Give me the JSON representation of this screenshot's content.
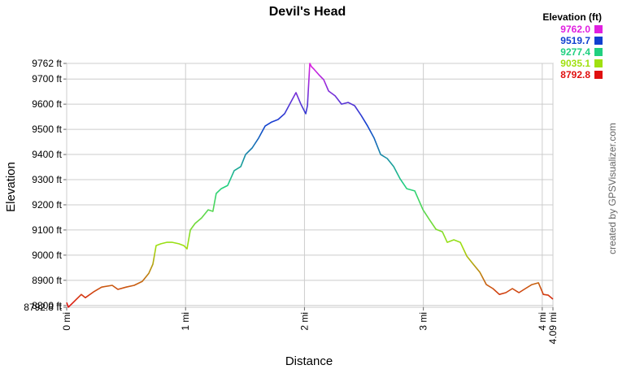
{
  "chart_data": {
    "type": "line",
    "title": "Devil's Head",
    "x_label": "Distance",
    "y_label": "Elevation",
    "credit": "created by GPSVisualizer.com",
    "legend_title": "Elevation (ft)",
    "legend": [
      {
        "value": 9762.0,
        "label": "9762.0",
        "color": "#e020e0"
      },
      {
        "value": 9519.7,
        "label": "9519.7",
        "color": "#1040d0"
      },
      {
        "value": 9277.4,
        "label": "9277.4",
        "color": "#20d080"
      },
      {
        "value": 9035.1,
        "label": "9035.1",
        "color": "#a0e010"
      },
      {
        "value": 8792.8,
        "label": "8792.8",
        "color": "#e01010"
      }
    ],
    "x": [
      0,
      0.014,
      0.055,
      0.123,
      0.157,
      0.226,
      0.294,
      0.383,
      0.431,
      0.5,
      0.568,
      0.636,
      0.691,
      0.725,
      0.752,
      0.793,
      0.841,
      0.889,
      0.944,
      0.985,
      1.012,
      1.04,
      1.08,
      1.135,
      1.19,
      1.23,
      1.258,
      1.3,
      1.354,
      1.409,
      1.464,
      1.505,
      1.56,
      1.614,
      1.669,
      1.724,
      1.778,
      1.833,
      1.888,
      1.929,
      1.97,
      2.011,
      2.025,
      2.045,
      2.059,
      2.08,
      2.121,
      2.162,
      2.203,
      2.258,
      2.312,
      2.367,
      2.422,
      2.477,
      2.531,
      2.586,
      2.641,
      2.696,
      2.75,
      2.805,
      2.86,
      2.928,
      2.997,
      3.051,
      3.106,
      3.16,
      3.201,
      3.256,
      3.311,
      3.366,
      3.42,
      3.475,
      3.53,
      3.585,
      3.639,
      3.694,
      3.749,
      3.804,
      3.858,
      3.913,
      3.968,
      4.009,
      4.05,
      4.09
    ],
    "y": [
      8812,
      8793,
      8812,
      8844,
      8831,
      8854,
      8873,
      8880,
      8864,
      8873,
      8880,
      8896,
      8928,
      8964,
      9038,
      9045,
      9051,
      9051,
      9045,
      9038,
      9025,
      9100,
      9126,
      9148,
      9180,
      9174,
      9245,
      9264,
      9277,
      9336,
      9352,
      9400,
      9426,
      9465,
      9513,
      9529,
      9539,
      9562,
      9610,
      9646,
      9600,
      9562,
      9594,
      9762,
      9749,
      9739,
      9717,
      9697,
      9652,
      9633,
      9600,
      9607,
      9594,
      9555,
      9513,
      9465,
      9400,
      9384,
      9352,
      9303,
      9264,
      9255,
      9180,
      9141,
      9103,
      9093,
      9051,
      9061,
      9051,
      8996,
      8964,
      8932,
      8883,
      8867,
      8844,
      8851,
      8867,
      8851,
      8867,
      8883,
      8890,
      8844,
      8841,
      8825
    ],
    "xlim": [
      0,
      4.09
    ],
    "ylim": [
      8792.8,
      9762
    ],
    "xticks": [
      {
        "value": 0,
        "label": "0 mi"
      },
      {
        "value": 1,
        "label": "1 mi"
      },
      {
        "value": 2,
        "label": "2 mi"
      },
      {
        "value": 3,
        "label": "3 mi"
      },
      {
        "value": 4,
        "label": "4 mi"
      },
      {
        "value": 4.09,
        "label": "4.09 mi"
      }
    ],
    "yticks": [
      {
        "value": 8792.8,
        "label": "8792.8 ft"
      },
      {
        "value": 8800,
        "label": "8800 ft"
      },
      {
        "value": 8900,
        "label": "8900 ft"
      },
      {
        "value": 9000,
        "label": "9000 ft"
      },
      {
        "value": 9100,
        "label": "9100 ft"
      },
      {
        "value": 9200,
        "label": "9200 ft"
      },
      {
        "value": 9300,
        "label": "9300 ft"
      },
      {
        "value": 9400,
        "label": "9400 ft"
      },
      {
        "value": 9500,
        "label": "9500 ft"
      },
      {
        "value": 9600,
        "label": "9600 ft"
      },
      {
        "value": 9700,
        "label": "9700 ft"
      },
      {
        "value": 9762,
        "label": "9762 ft"
      }
    ],
    "grid": true
  }
}
